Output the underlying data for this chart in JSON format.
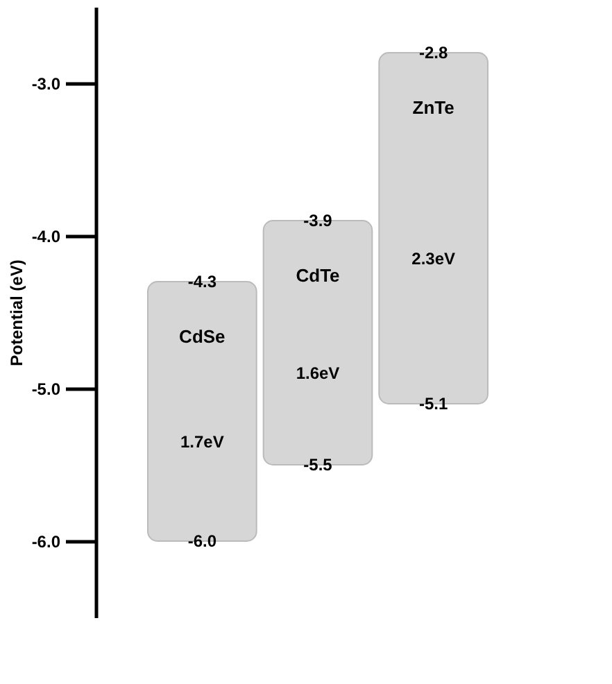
{
  "chart_data": {
    "type": "bar",
    "ylabel": "Potential (eV)",
    "categories": [
      "CdSe",
      "CdTe",
      "ZnTe"
    ],
    "values": [
      1.7,
      1.6,
      2.3
    ],
    "base": [
      -6.0,
      -5.5,
      -5.1
    ],
    "value_labels": [
      "1.7eV",
      "1.6eV",
      "2.3eV"
    ],
    "color": "#d6d6d6",
    "ylim": [
      -6.5,
      -2.5
    ],
    "yticks": [
      {
        "value": -3,
        "label": "-3.0"
      },
      {
        "value": -4,
        "label": "-4.0"
      },
      {
        "value": -5,
        "label": "-5.0"
      },
      {
        "value": -6,
        "label": "-6.0"
      }
    ],
    "annotations": [
      {
        "text": "-4.3",
        "x": "CdSe",
        "y": -4.3
      },
      {
        "text": "-6.0",
        "x": "CdSe",
        "y": -6.0
      },
      {
        "text": "-3.9",
        "x": "CdTe",
        "y": -3.9
      },
      {
        "text": "-5.5",
        "x": "CdTe",
        "y": -5.5
      },
      {
        "text": "-2.8",
        "x": "ZnTe",
        "y": -2.8
      },
      {
        "text": "-5.1",
        "x": "ZnTe",
        "y": -5.1
      }
    ],
    "grid": false
  }
}
